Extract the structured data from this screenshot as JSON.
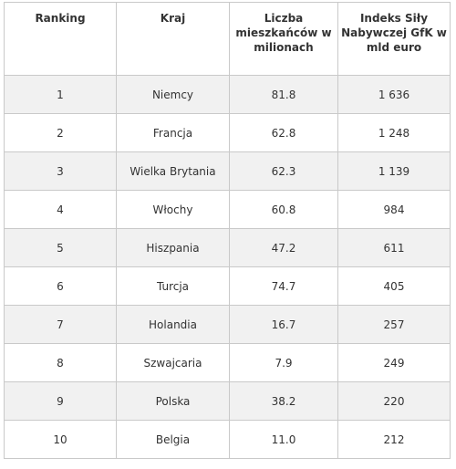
{
  "table": {
    "headers": [
      "Ranking",
      "Kraj",
      "Liczba mieszkańców w milionach",
      "Indeks Siły Nabywczej GfK w mld euro"
    ],
    "rows": [
      [
        "1",
        "Niemcy",
        "81.8",
        "1 636"
      ],
      [
        "2",
        "Francja",
        "62.8",
        "1 248"
      ],
      [
        "3",
        "Wielka Brytania",
        "62.3",
        "1 139"
      ],
      [
        "4",
        "Włochy",
        "60.8",
        "984"
      ],
      [
        "5",
        "Hiszpania",
        "47.2",
        "611"
      ],
      [
        "6",
        "Turcja",
        "74.7",
        "405"
      ],
      [
        "7",
        "Holandia",
        "16.7",
        "257"
      ],
      [
        "8",
        "Szwajcaria",
        "7.9",
        "249"
      ],
      [
        "9",
        "Polska",
        "38.2",
        "220"
      ],
      [
        "10",
        "Belgia",
        "11.0",
        "212"
      ]
    ]
  },
  "colors": {
    "border": "#c9c9c9",
    "row_shaded": "#f1f1f1",
    "row_plain": "#ffffff",
    "text": "#333333"
  }
}
